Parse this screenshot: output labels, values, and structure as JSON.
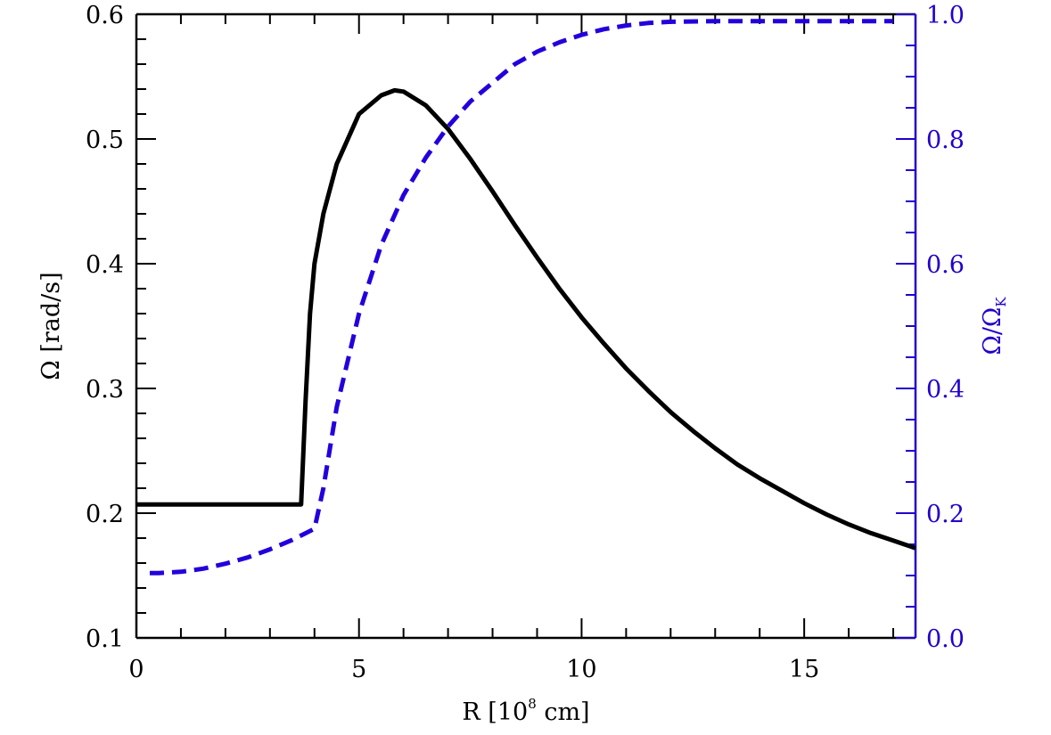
{
  "chart_data": {
    "type": "line",
    "xlabel": {
      "main": "R [10",
      "sup": "8",
      "rest": " cm]"
    },
    "ylabel_left": "Ω [rad/s]",
    "ylabel_right": {
      "main": "Ω/Ω",
      "sub": "K"
    },
    "xlim": [
      0,
      17.5
    ],
    "ylim_left": [
      0.1,
      0.6
    ],
    "ylim_right": [
      0.0,
      1.0
    ],
    "x_ticks": [
      0,
      5,
      10,
      15
    ],
    "x_tick_labels": [
      "0",
      "5",
      "10",
      "15"
    ],
    "left_ticks": [
      0.1,
      0.2,
      0.3,
      0.4,
      0.5,
      0.6
    ],
    "left_tick_labels": [
      "0.1",
      "0.2",
      "0.3",
      "0.4",
      "0.5",
      "0.6"
    ],
    "right_ticks": [
      0.0,
      0.2,
      0.4,
      0.6,
      0.8,
      1.0
    ],
    "right_tick_labels": [
      "0.0",
      "0.2",
      "0.4",
      "0.6",
      "0.8",
      "1.0"
    ],
    "grid": false,
    "colors": {
      "axis_left": "#000000",
      "axis_right": "#2200cc",
      "omega": "#000000",
      "ratio": "#2200dd"
    },
    "series": [
      {
        "axis": "left",
        "style": "solid",
        "x": [
          0,
          3.7,
          3.8,
          3.9,
          4.0,
          4.2,
          4.5,
          5.0,
          5.5,
          5.8,
          6.0,
          6.5,
          7.0,
          7.5,
          8.0,
          8.5,
          9.0,
          9.5,
          10.0,
          10.5,
          11.0,
          11.5,
          12.0,
          12.5,
          13.0,
          13.5,
          14.0,
          14.5,
          15.0,
          15.5,
          16.0,
          16.5,
          17.0,
          17.5
        ],
        "y": [
          0.207,
          0.207,
          0.29,
          0.36,
          0.4,
          0.44,
          0.48,
          0.52,
          0.535,
          0.539,
          0.538,
          0.527,
          0.508,
          0.484,
          0.458,
          0.431,
          0.405,
          0.38,
          0.357,
          0.336,
          0.316,
          0.298,
          0.281,
          0.266,
          0.252,
          0.239,
          0.228,
          0.218,
          0.208,
          0.199,
          0.191,
          0.184,
          0.178,
          0.172
        ]
      },
      {
        "axis": "right",
        "style": "dashed",
        "x": [
          0.3,
          0.5,
          1.0,
          1.5,
          2.0,
          2.5,
          3.0,
          3.5,
          4.0,
          4.2,
          4.5,
          5.0,
          5.5,
          6.0,
          6.5,
          7.0,
          7.5,
          8.0,
          8.5,
          9.0,
          9.5,
          10.0,
          10.5,
          11.0,
          11.5,
          12.0,
          13.0,
          14.0,
          15.0,
          16.0,
          17.0
        ],
        "y": [
          0.104,
          0.104,
          0.106,
          0.111,
          0.119,
          0.129,
          0.142,
          0.157,
          0.175,
          0.24,
          0.37,
          0.52,
          0.63,
          0.71,
          0.77,
          0.82,
          0.86,
          0.89,
          0.92,
          0.94,
          0.955,
          0.967,
          0.976,
          0.982,
          0.986,
          0.988,
          0.989,
          0.989,
          0.989,
          0.989,
          0.989
        ]
      }
    ]
  }
}
